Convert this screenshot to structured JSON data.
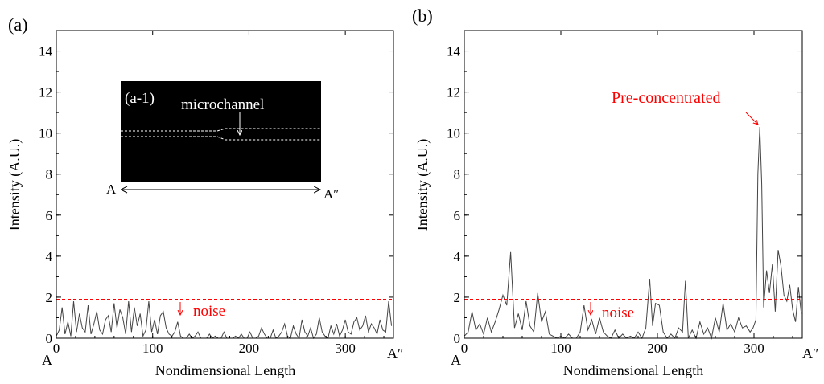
{
  "figure": {
    "colors": {
      "signal": "#444444",
      "axis": "#000000",
      "annotation": "#ff0000",
      "threshold": "#ff0000"
    }
  },
  "chart_data": [
    {
      "type": "line",
      "panel_label": "(a)",
      "xlabel": "Nondimensional Length",
      "ylabel": "Intensity (A.U.)",
      "xlim": [
        0,
        350
      ],
      "ylim": [
        0,
        15
      ],
      "x_ticks": [
        0,
        100,
        200,
        300
      ],
      "y_ticks": [
        0,
        2,
        4,
        6,
        8,
        10,
        12,
        14
      ],
      "x_tick_labels": [
        "0",
        "100",
        "200",
        "300"
      ],
      "y_tick_labels": [
        "0",
        "2",
        "4",
        "6",
        "8",
        "10",
        "12",
        "14"
      ],
      "grid": false,
      "endpoint_labels": {
        "start": "A",
        "end": "A″"
      },
      "threshold": {
        "y": 1.9,
        "label": "noise",
        "label_x": 125
      },
      "inset": {
        "label": "(a-1)",
        "annotation": "microchannel",
        "arrow_start": "A",
        "arrow_end": "A″"
      },
      "series": [
        {
          "x": [
            0,
            3,
            6,
            9,
            12,
            15,
            18,
            21,
            24,
            27,
            30,
            33,
            36,
            39,
            42,
            45,
            48,
            51,
            54,
            57,
            60,
            63,
            66,
            69,
            72,
            75,
            78,
            81,
            84,
            87,
            90,
            93,
            96,
            99,
            102,
            105,
            108,
            111,
            114,
            117,
            120,
            123,
            126,
            129,
            132,
            135,
            138,
            141,
            144,
            147,
            150,
            153,
            156,
            159,
            162,
            165,
            168,
            171,
            174,
            177,
            180,
            183,
            186,
            189,
            192,
            195,
            198,
            201,
            204,
            207,
            210,
            213,
            216,
            219,
            222,
            225,
            228,
            231,
            234,
            237,
            240,
            243,
            246,
            249,
            252,
            255,
            258,
            261,
            264,
            267,
            270,
            273,
            276,
            279,
            282,
            285,
            288,
            291,
            294,
            297,
            300,
            303,
            306,
            309,
            312,
            315,
            318,
            321,
            324,
            327,
            330,
            333,
            336,
            339,
            342,
            345,
            348
          ],
          "y": [
            0.1,
            0.4,
            1.5,
            0.2,
            0.8,
            0.1,
            1.8,
            0.3,
            1.2,
            0.5,
            0.3,
            1.6,
            0.2,
            0.7,
            1.3,
            0.4,
            0.2,
            0.9,
            1.1,
            0.3,
            1.7,
            0.5,
            1.4,
            1.0,
            0.2,
            1.8,
            0.3,
            1.5,
            0.6,
            1.2,
            0.1,
            0.4,
            1.8,
            0.3,
            0.9,
            0.2,
            1.1,
            1.3,
            0.5,
            0.2,
            0.1,
            0.3,
            0.8,
            0.1,
            0.0,
            0.0,
            0.2,
            0.0,
            0.1,
            0.3,
            0.0,
            0.0,
            0.0,
            0.2,
            0.0,
            0.1,
            0.0,
            0.0,
            0.3,
            0.0,
            0.0,
            0.0,
            0.1,
            0.0,
            0.2,
            0.0,
            0.0,
            0.3,
            0.0,
            0.0,
            0.1,
            0.5,
            0.2,
            0.0,
            0.0,
            0.4,
            0.0,
            0.1,
            0.3,
            0.7,
            0.1,
            0.0,
            0.6,
            0.2,
            0.0,
            0.9,
            0.3,
            0.1,
            0.5,
            0.0,
            0.2,
            1.0,
            0.3,
            0.1,
            0.0,
            0.6,
            0.2,
            0.7,
            0.1,
            0.4,
            0.9,
            0.3,
            0.2,
            0.8,
            1.0,
            0.4,
            0.6,
            1.1,
            0.3,
            0.7,
            0.5,
            0.2,
            0.9,
            0.4,
            0.3,
            1.8,
            0.6
          ]
        }
      ]
    },
    {
      "type": "line",
      "panel_label": "(b)",
      "xlabel": "Nondimensional Length",
      "ylabel": "Intensity (A.U.)",
      "xlim": [
        0,
        350
      ],
      "ylim": [
        0,
        15
      ],
      "x_ticks": [
        0,
        100,
        200,
        300
      ],
      "y_ticks": [
        0,
        2,
        4,
        6,
        8,
        10,
        12,
        14
      ],
      "x_tick_labels": [
        "0",
        "100",
        "200",
        "300"
      ],
      "y_tick_labels": [
        "0",
        "2",
        "4",
        "6",
        "8",
        "10",
        "12",
        "14"
      ],
      "grid": false,
      "endpoint_labels": {
        "start": "A",
        "end": "A″"
      },
      "threshold": {
        "y": 1.9,
        "label": "noise",
        "label_x": 130
      },
      "peak_annotation": {
        "label": "Pre-concentrated",
        "x": 306,
        "y": 10.3
      },
      "series": [
        {
          "x": [
            0,
            4,
            8,
            12,
            16,
            20,
            24,
            28,
            32,
            36,
            40,
            44,
            48,
            52,
            56,
            60,
            64,
            68,
            72,
            76,
            80,
            84,
            88,
            92,
            96,
            100,
            104,
            108,
            112,
            116,
            120,
            124,
            128,
            132,
            136,
            140,
            144,
            148,
            152,
            156,
            160,
            164,
            168,
            172,
            176,
            180,
            184,
            188,
            192,
            195,
            198,
            202,
            206,
            210,
            214,
            218,
            222,
            226,
            229,
            232,
            236,
            240,
            244,
            248,
            252,
            256,
            260,
            264,
            268,
            272,
            276,
            280,
            284,
            288,
            292,
            296,
            299,
            302,
            304,
            306,
            308,
            310,
            313,
            316,
            319,
            322,
            325,
            328,
            331,
            334,
            337,
            340,
            343,
            346,
            349
          ],
          "y": [
            0.1,
            0.3,
            1.3,
            0.4,
            0.7,
            0.2,
            1.0,
            0.3,
            0.8,
            1.4,
            2.1,
            1.6,
            4.2,
            0.5,
            1.2,
            0.4,
            1.8,
            0.6,
            0.3,
            2.2,
            0.8,
            1.3,
            0.2,
            0.1,
            0.0,
            0.1,
            0.0,
            0.2,
            0.0,
            0.0,
            0.3,
            1.6,
            0.4,
            0.9,
            0.2,
            1.0,
            0.3,
            0.1,
            0.0,
            0.4,
            0.0,
            0.2,
            0.0,
            0.1,
            0.0,
            0.3,
            0.0,
            0.5,
            2.9,
            0.6,
            1.7,
            1.6,
            0.3,
            0.0,
            0.2,
            0.0,
            0.5,
            0.3,
            2.8,
            0.0,
            0.4,
            0.0,
            0.8,
            0.2,
            0.5,
            0.0,
            1.0,
            0.3,
            1.7,
            0.4,
            0.7,
            0.3,
            1.0,
            0.5,
            0.6,
            0.3,
            0.5,
            0.9,
            8.0,
            10.3,
            7.5,
            1.5,
            3.3,
            2.2,
            3.6,
            1.3,
            4.3,
            3.5,
            2.1,
            1.8,
            2.6,
            1.4,
            0.8,
            2.5,
            1.2
          ]
        }
      ]
    }
  ]
}
